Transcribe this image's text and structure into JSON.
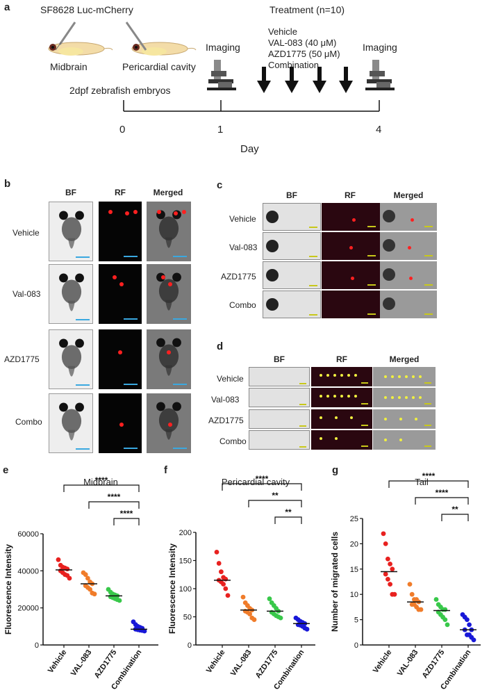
{
  "panel_a": {
    "label": "a",
    "cell_line": "SF8628 Luc-mCherry",
    "sites": [
      "Midbrain",
      "Pericardial cavity"
    ],
    "embryos": "2dpf zebrafish embryos",
    "imaging_label": "Imaging",
    "treatment_title": "Treatment (n=10)",
    "treatments": [
      "Vehicle",
      "VAL-083 (40 μM)",
      "AZD1775 (50 μM)",
      "Combination"
    ],
    "ticks": [
      "0",
      "1",
      "4"
    ],
    "axis_label": "Day"
  },
  "panel_b": {
    "label": "b",
    "columns": [
      "BF",
      "RF",
      "Merged"
    ],
    "rows": [
      "Vehicle",
      "Val-083",
      "AZD1775",
      "Combo"
    ]
  },
  "panel_c": {
    "label": "c",
    "columns": [
      "BF",
      "RF",
      "Merged"
    ],
    "rows": [
      "Vehicle",
      "Val-083",
      "AZD1775",
      "Combo"
    ]
  },
  "panel_d": {
    "label": "d",
    "columns": [
      "BF",
      "RF",
      "Merged"
    ],
    "rows": [
      "Vehicle",
      "Val-083",
      "AZD1775",
      "Combo"
    ]
  },
  "colors": {
    "vehicle": "#e8211f",
    "val083": "#f07c2a",
    "azd1775": "#38c84a",
    "combination": "#1818d8",
    "scalebar_b": "#3aa8e0",
    "scalebar_cd": "#c8c81a",
    "fluor": "#ff2020"
  },
  "chart_data": [
    {
      "label": "e",
      "type": "scatter",
      "title": "Midbrain",
      "xlabel": "",
      "ylabel": "Fluorescence Intensity",
      "categories": [
        "Vehicle",
        "VAL-083",
        "AZD1775",
        "Combination"
      ],
      "ylim": [
        0,
        60000
      ],
      "yticks": [
        "0",
        "20000",
        "40000",
        "60000"
      ],
      "series": [
        {
          "values": [
            46000,
            43000,
            42000,
            41500,
            41000,
            40000,
            39000,
            38000,
            37500,
            36000
          ],
          "median": 40500
        },
        {
          "values": [
            39000,
            38000,
            36000,
            34000,
            33000,
            32000,
            31000,
            30000,
            28000,
            27500
          ],
          "median": 33000
        },
        {
          "values": [
            30000,
            28500,
            27500,
            27000,
            26500,
            26000,
            25500,
            25000,
            24500,
            24000
          ],
          "median": 26500
        },
        {
          "values": [
            12500,
            11000,
            10000,
            9500,
            9000,
            8500,
            8200,
            8000,
            7800,
            7500
          ],
          "median": 8500
        }
      ],
      "significance": [
        {
          "from": 0,
          "to": 3,
          "label": "****"
        },
        {
          "from": 1,
          "to": 3,
          "label": "****"
        },
        {
          "from": 2,
          "to": 3,
          "label": "****"
        }
      ]
    },
    {
      "label": "f",
      "type": "scatter",
      "title": "Pericardial cavity",
      "xlabel": "",
      "ylabel": "Fluorescence Intensity",
      "categories": [
        "Vehicle",
        "VAL-083",
        "AZD1775",
        "Combination"
      ],
      "ylim": [
        0,
        200
      ],
      "yticks": [
        "0",
        "50",
        "100",
        "150",
        "200"
      ],
      "series": [
        {
          "values": [
            165,
            145,
            130,
            120,
            117,
            115,
            112,
            108,
            100,
            88
          ],
          "median": 115
        },
        {
          "values": [
            85,
            75,
            70,
            65,
            62,
            60,
            58,
            55,
            48,
            45
          ],
          "median": 62
        },
        {
          "values": [
            82,
            75,
            70,
            65,
            60,
            58,
            55,
            52,
            50,
            48
          ],
          "median": 60
        },
        {
          "values": [
            48,
            45,
            42,
            40,
            38,
            36,
            35,
            33,
            30,
            28
          ],
          "median": 38
        }
      ],
      "significance": [
        {
          "from": 0,
          "to": 3,
          "label": "****"
        },
        {
          "from": 1,
          "to": 3,
          "label": "**"
        },
        {
          "from": 2,
          "to": 3,
          "label": "**"
        }
      ]
    },
    {
      "label": "g",
      "type": "scatter",
      "title": "Tail",
      "xlabel": "",
      "ylabel": "Number of migrated cells",
      "categories": [
        "Vehicle",
        "VAL-083",
        "AZD1775",
        "Combination"
      ],
      "ylim": [
        0,
        25
      ],
      "yticks": [
        "0",
        "5",
        "10",
        "15",
        "20",
        "25"
      ],
      "series": [
        {
          "values": [
            22,
            20,
            17,
            16,
            15,
            14,
            13,
            12,
            10,
            10
          ],
          "median": 14.5
        },
        {
          "values": [
            12,
            10,
            9,
            9,
            8.5,
            8,
            8,
            7.5,
            7,
            7
          ],
          "median": 8.5
        },
        {
          "values": [
            9,
            8,
            7.5,
            7,
            7,
            6.5,
            6,
            5.5,
            5,
            4
          ],
          "median": 6.8
        },
        {
          "values": [
            6,
            5.5,
            5,
            4,
            3,
            3,
            2,
            2,
            1.5,
            1
          ],
          "median": 3
        }
      ],
      "significance": [
        {
          "from": 0,
          "to": 3,
          "label": "****"
        },
        {
          "from": 1,
          "to": 3,
          "label": "****"
        },
        {
          "from": 2,
          "to": 3,
          "label": "**"
        }
      ]
    }
  ]
}
